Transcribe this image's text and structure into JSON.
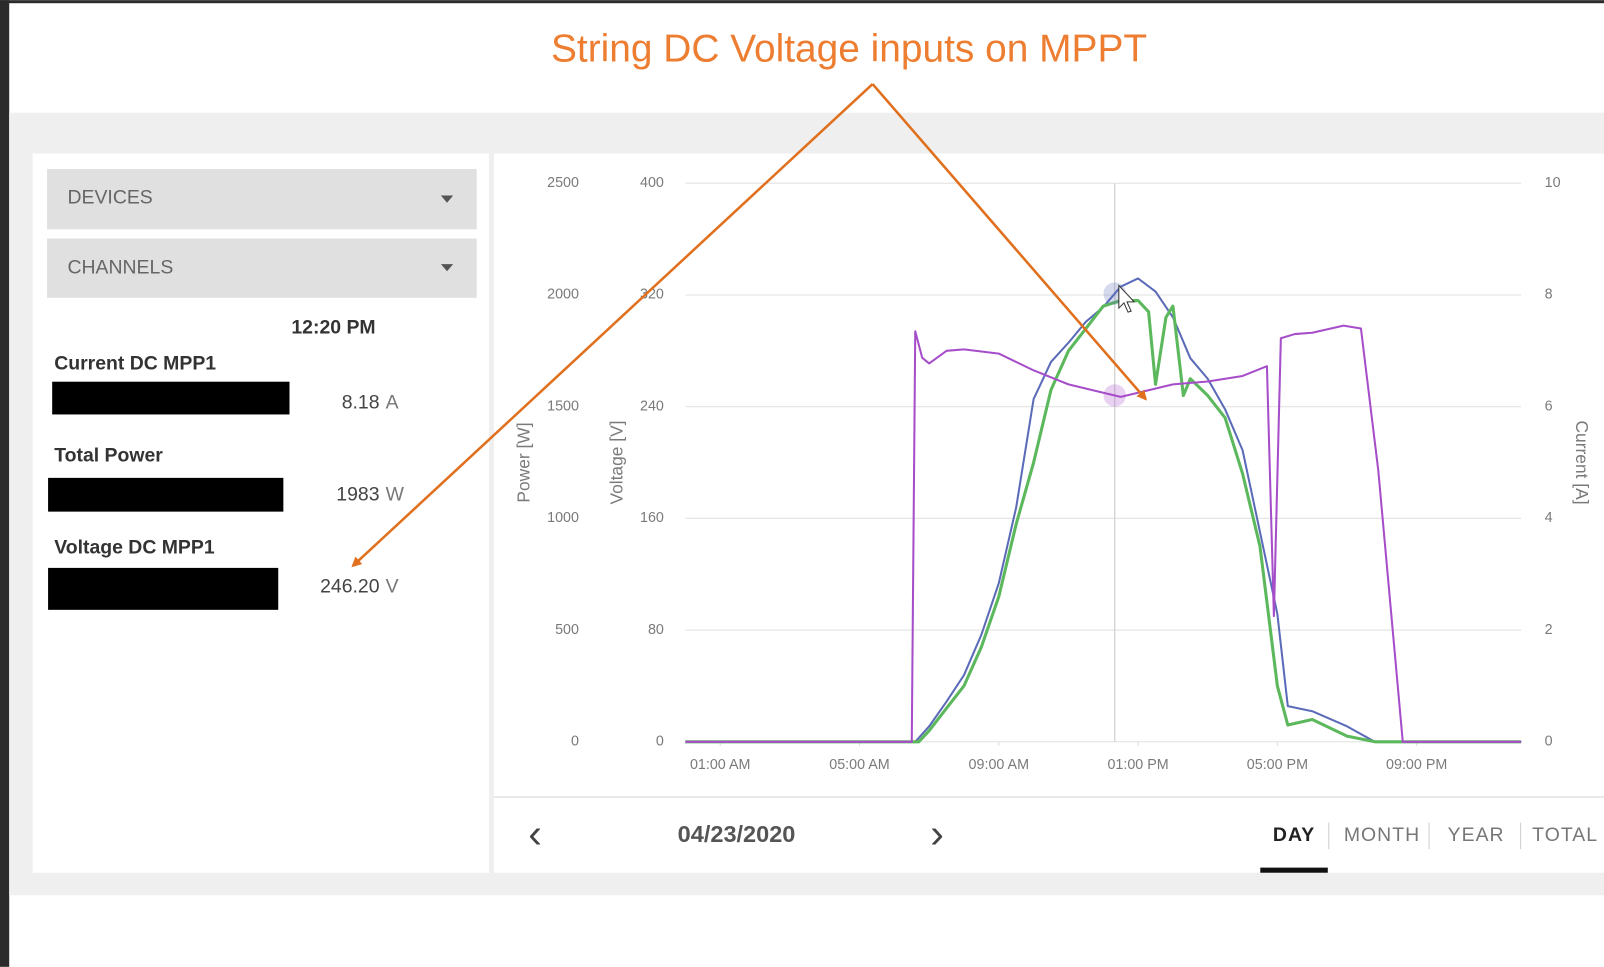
{
  "annotation": {
    "title": "String DC Voltage inputs on MPPT"
  },
  "sidebar": {
    "devices": "DEVICES",
    "channels": "CHANNELS",
    "readings": [
      {
        "label": "Current DC MPP1",
        "value": "8.18",
        "unit": "A"
      },
      {
        "label": "Total Power",
        "value": "1983",
        "unit": "W"
      },
      {
        "label": "Voltage DC MPP1",
        "value": "246.20",
        "unit": "V"
      }
    ]
  },
  "chart_data": {
    "type": "line",
    "xlim": [
      0,
      24
    ],
    "xticks": [
      {
        "value": 1,
        "label": "01:00 AM"
      },
      {
        "value": 5,
        "label": "05:00 AM"
      },
      {
        "value": 9,
        "label": "09:00 AM"
      },
      {
        "value": 13,
        "label": "01:00 PM"
      },
      {
        "value": 17,
        "label": "05:00 PM"
      },
      {
        "value": 21,
        "label": "09:00 PM"
      }
    ],
    "yaxes": [
      {
        "label": "Power [W]",
        "lim": [
          0,
          2500
        ],
        "ticks": [
          0,
          500,
          1000,
          1500,
          2000,
          2500
        ],
        "side": "left"
      },
      {
        "label": "Voltage [V]",
        "lim": [
          0,
          400
        ],
        "ticks": [
          0,
          80,
          160,
          240,
          320,
          400
        ],
        "side": "left"
      },
      {
        "label": "Current [A]",
        "lim": [
          0,
          10
        ],
        "ticks": [
          0,
          2,
          4,
          6,
          8,
          10
        ],
        "side": "right"
      }
    ],
    "grid": true,
    "crosshair": {
      "value": 12.33,
      "label": "12:20 PM"
    },
    "series": [
      {
        "color": "#5b6bb8",
        "axis": 0,
        "x": [
          0,
          6.6,
          7,
          7.5,
          8,
          8.5,
          9,
          9.5,
          10,
          10.5,
          11,
          11.5,
          12,
          12.5,
          13,
          13.5,
          14,
          14.5,
          15,
          15.5,
          16,
          16.5,
          17,
          17.3,
          18,
          19,
          19.8,
          24
        ],
        "values": [
          0,
          0,
          69,
          180,
          298,
          480,
          710,
          1050,
          1534,
          1700,
          1786,
          1880,
          1946,
          2037,
          2074,
          2015,
          1900,
          1717,
          1625,
          1488,
          1305,
          939,
          572,
          160,
          137,
          69,
          0,
          0
        ]
      },
      {
        "color": "#5cb85c",
        "axis": 2,
        "x": [
          0,
          6.7,
          7,
          7.5,
          8,
          8.5,
          9,
          9.5,
          10,
          10.5,
          11,
          11.5,
          12,
          12.5,
          13,
          13.3,
          13.5,
          13.8,
          14,
          14.3,
          14.5,
          15,
          15.5,
          16,
          16.5,
          17,
          17.3,
          18,
          19,
          19.8,
          24
        ],
        "values": [
          0,
          0,
          0.2,
          0.6,
          1.0,
          1.7,
          2.6,
          3.9,
          5.0,
          6.3,
          7.0,
          7.4,
          7.8,
          7.9,
          7.9,
          7.7,
          6.4,
          7.6,
          7.8,
          6.2,
          6.5,
          6.2,
          5.8,
          4.8,
          3.5,
          1.0,
          0.3,
          0.4,
          0.1,
          0,
          0
        ]
      },
      {
        "color": "#a64dc9",
        "axis": 1,
        "x": [
          0,
          6.5,
          6.6,
          6.8,
          7,
          7.5,
          8,
          9,
          10,
          11,
          12,
          12.5,
          13,
          14,
          15,
          16,
          16.7,
          16.9,
          17.1,
          17.5,
          18,
          18.9,
          19.4,
          19.9,
          20.6,
          24
        ],
        "values": [
          0,
          0,
          294,
          275,
          271,
          280,
          281,
          278,
          266,
          256,
          250,
          247,
          250,
          256,
          258,
          262,
          269,
          90,
          289,
          292,
          293,
          298,
          296,
          194,
          0,
          0
        ]
      }
    ]
  },
  "footer": {
    "prev": "‹",
    "date": "04/23/2020",
    "next": "›",
    "tabs": [
      "DAY",
      "MONTH",
      "YEAR",
      "TOTAL"
    ],
    "active": "DAY"
  }
}
